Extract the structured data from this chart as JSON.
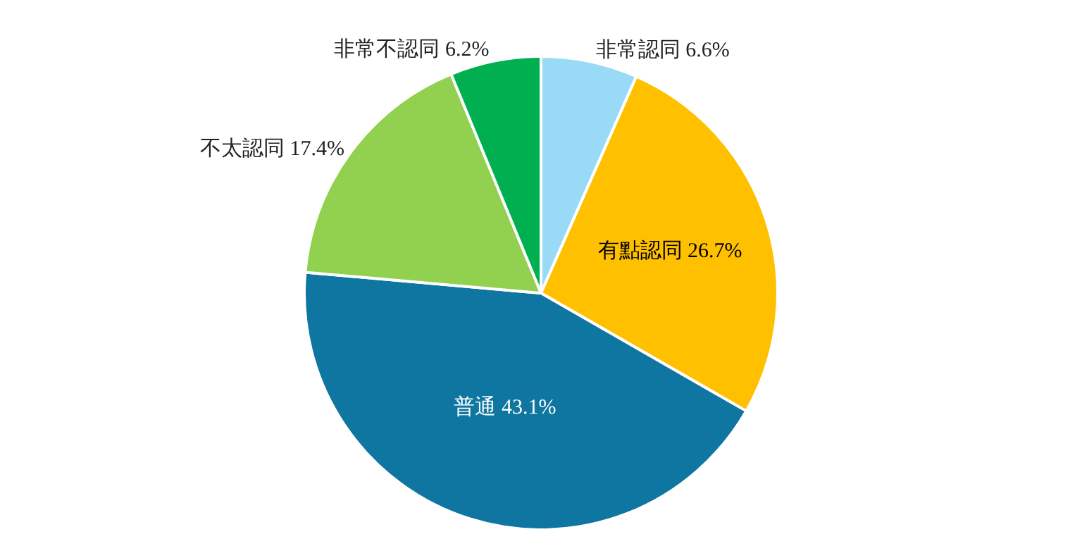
{
  "chart_data": {
    "type": "pie",
    "categories": [
      "非常認同",
      "有點認同",
      "普通",
      "不太認同",
      "非常不認同"
    ],
    "values": [
      6.6,
      26.7,
      43.1,
      17.4,
      6.2
    ],
    "colors": [
      "#99dbf7",
      "#ffc000",
      "#0e76a0",
      "#92d050",
      "#00b050"
    ],
    "value_labels": [
      "6.6%",
      "26.7%",
      "43.1%",
      "17.4%",
      "6.2%"
    ],
    "legend": false
  }
}
